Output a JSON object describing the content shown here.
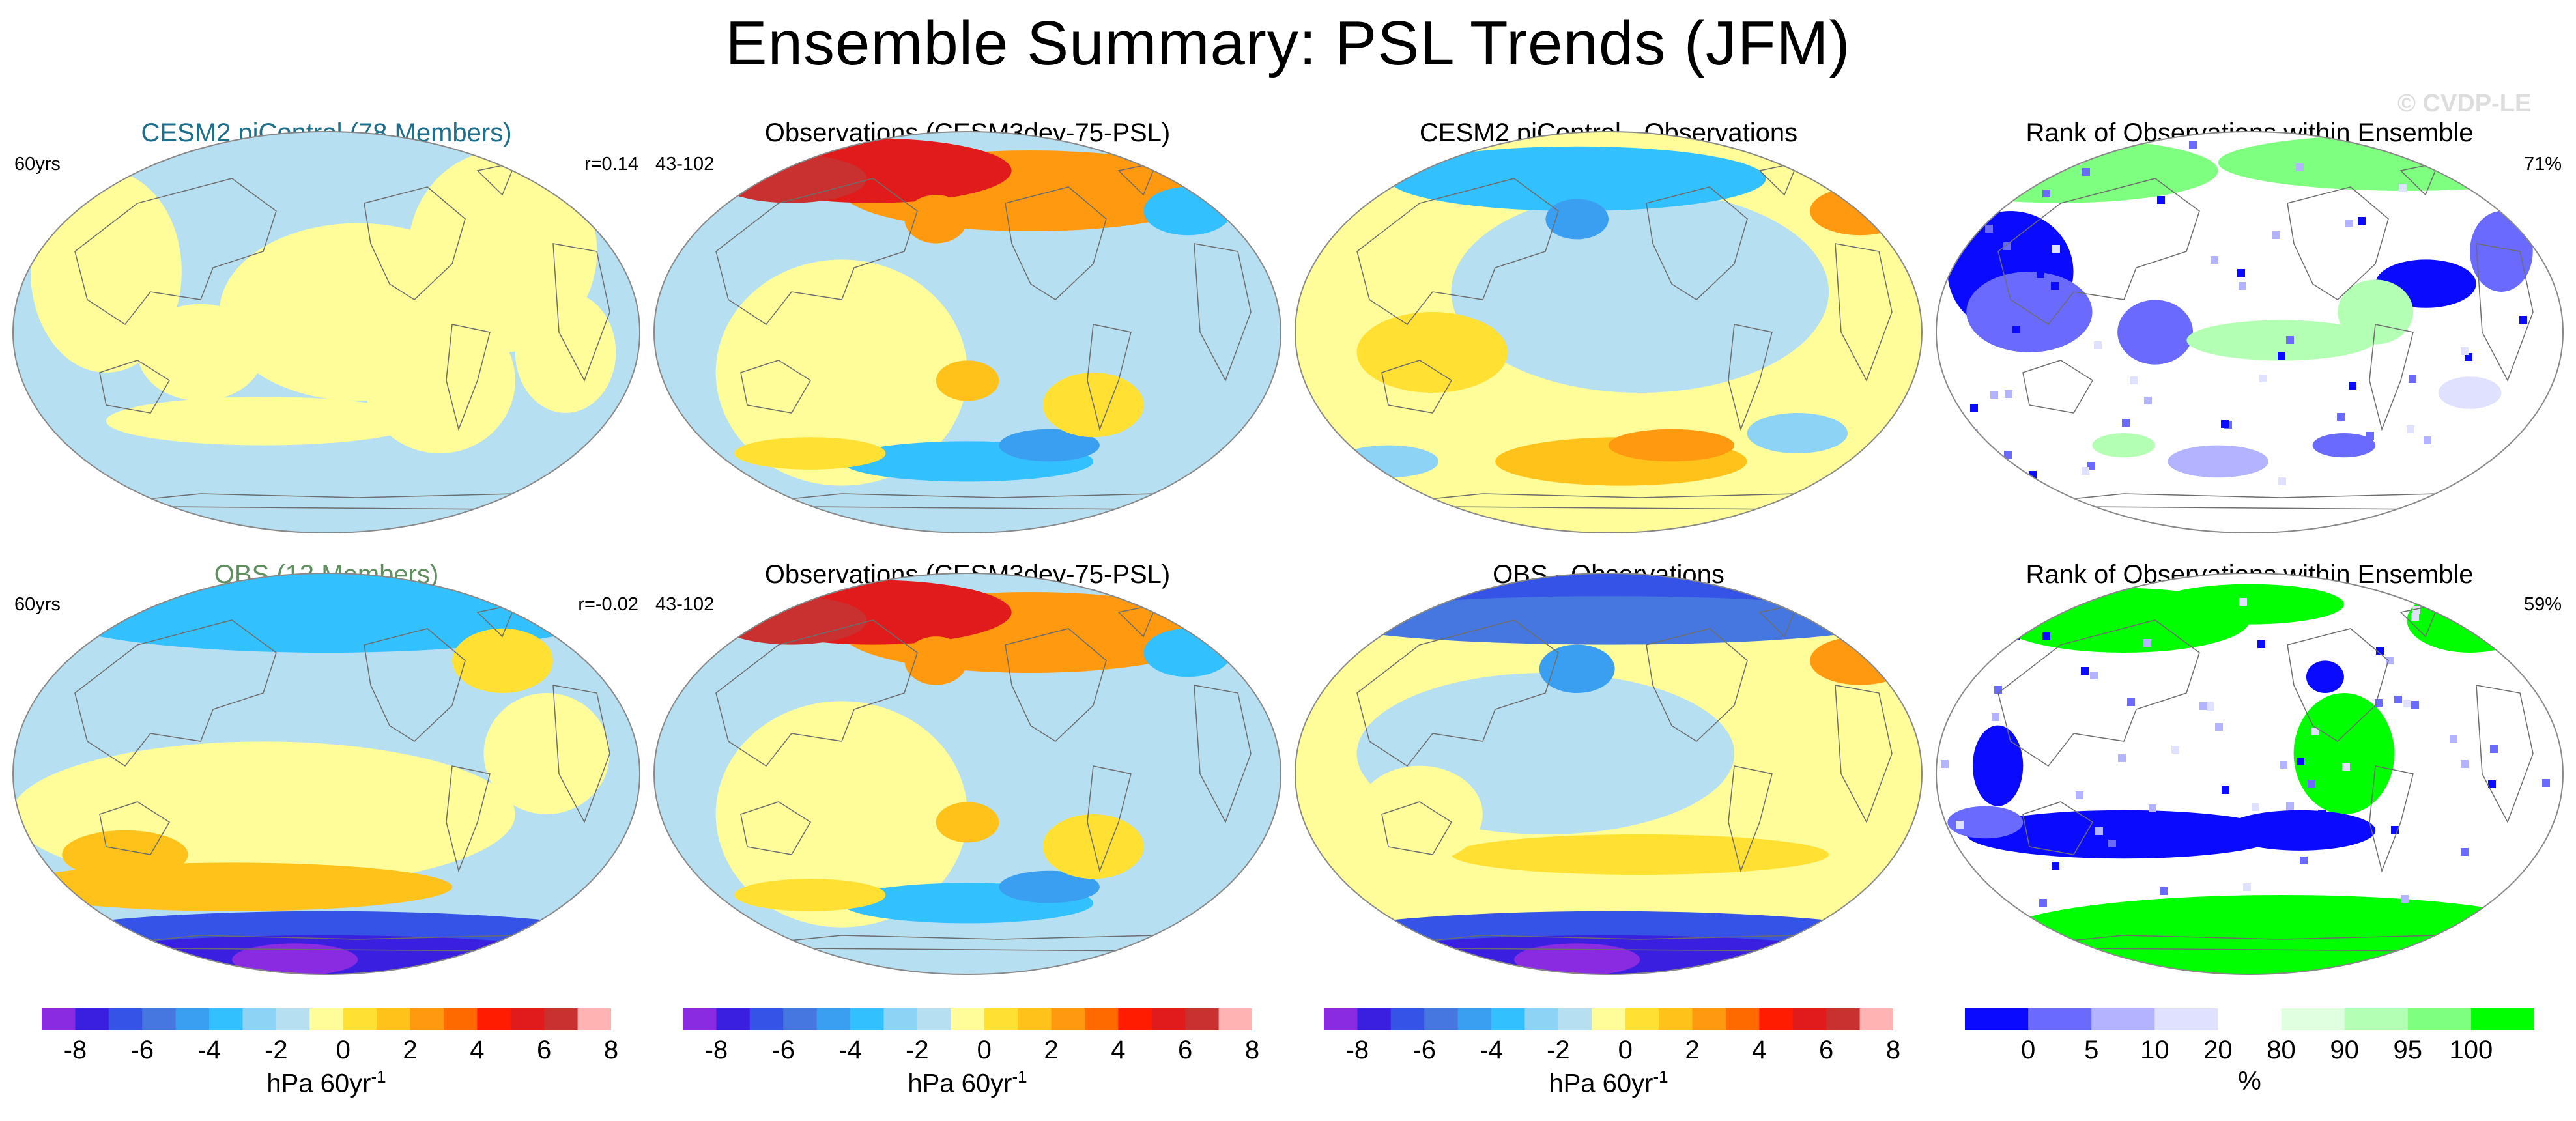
{
  "title": "Ensemble Summary: PSL Trends (JFM)",
  "watermark": "© CVDP-LE",
  "colors": {
    "title_cesm": "#1e6f8c",
    "title_obs_ens": "#5f8f5f",
    "map_outline": "#888888",
    "coast": "#6d6d6d"
  },
  "rows": [
    {
      "panels": [
        {
          "title": "CESM2 piControl (78 Members)",
          "title_color": "#1e6f8c",
          "left": "60yrs",
          "right": "r=0.14",
          "kind": "trend",
          "pattern": "cesm"
        },
        {
          "title": "Observations (CESM3dev-75-PSL)",
          "title_color": "#000000",
          "left": "43-102",
          "right": "",
          "kind": "trend",
          "pattern": "obs"
        },
        {
          "title": "CESM2 piControl - Observations",
          "title_color": "#000000",
          "left": "",
          "right": "",
          "kind": "trend",
          "pattern": "diff1"
        },
        {
          "title": "Rank of Observations within Ensemble",
          "title_color": "#000000",
          "left": "",
          "right": "71%",
          "kind": "rank",
          "pattern": "rank1"
        }
      ]
    },
    {
      "panels": [
        {
          "title": "OBS (13 Members)",
          "title_color": "#5f8f5f",
          "left": "60yrs",
          "right": "r=-0.02",
          "kind": "trend",
          "pattern": "obsens"
        },
        {
          "title": "Observations (CESM3dev-75-PSL)",
          "title_color": "#000000",
          "left": "43-102",
          "right": "",
          "kind": "trend",
          "pattern": "obs"
        },
        {
          "title": "OBS - Observations",
          "title_color": "#000000",
          "left": "",
          "right": "",
          "kind": "trend",
          "pattern": "diff2"
        },
        {
          "title": "Rank of Observations within Ensemble",
          "title_color": "#000000",
          "left": "",
          "right": "59%",
          "kind": "rank",
          "pattern": "rank2"
        }
      ]
    }
  ],
  "colorbars": {
    "trend": {
      "colors": [
        "#8a2be2",
        "#3a1fe0",
        "#3553e6",
        "#4677e0",
        "#3a9ff0",
        "#33c0ff",
        "#8dd3f5",
        "#b7dff2",
        "#fffd9a",
        "#ffe033",
        "#ffc21a",
        "#ff9a10",
        "#ff6a00",
        "#ff1c00",
        "#e11b1b",
        "#c93030",
        "#ffb3b3"
      ],
      "tick_labels": [
        "-8",
        "-6",
        "-4",
        "-2",
        "0",
        "2",
        "4",
        "6",
        "8"
      ],
      "unit": "hPa 60yr",
      "unit_sup": "-1"
    },
    "rank": {
      "colors": [
        "#0a0aff",
        "#6a6aff",
        "#b3b3ff",
        "#e0e0ff",
        "#ffffff",
        "#e0ffe0",
        "#b3ffb3",
        "#7fff7f",
        "#00ff00"
      ],
      "tick_labels": [
        "0",
        "5",
        "10",
        "20",
        "80",
        "90",
        "95",
        "100"
      ],
      "unit": "%"
    }
  },
  "chart_data": [
    {
      "type": "heatmap",
      "title": "CESM2 piControl (78 Members)",
      "variable": "PSL trend",
      "units": "hPa 60yr-1",
      "levels": [
        -8,
        -7,
        -6,
        -5,
        -4,
        -3,
        -2,
        -1,
        0,
        1,
        2,
        3,
        4,
        5,
        6,
        7,
        8
      ],
      "annotations": {
        "left": "60yrs",
        "right": "r=0.14"
      },
      "summary": "weak trends everywhere, between -1 and +1 hPa"
    },
    {
      "type": "heatmap",
      "title": "Observations (CESM3dev-75-PSL)",
      "variable": "PSL trend",
      "units": "hPa 60yr-1",
      "annotations": {
        "left": "43-102"
      },
      "summary": "strong positive over North Pacific/Arctic (+6 to +8), negatives over Southern Ocean (-2 to -3)"
    },
    {
      "type": "heatmap",
      "title": "CESM2 piControl - Observations",
      "variable": "PSL trend difference",
      "units": "hPa 60yr-1",
      "summary": "negative over North Pacific/Arctic (-3 to -5), positive bands in Southern Ocean (+2 to +3)"
    },
    {
      "type": "heatmap",
      "title": "Rank of Observations within Ensemble",
      "variable": "rank",
      "units": "%",
      "annotations": {
        "right": "71%"
      },
      "levels": [
        0,
        5,
        10,
        20,
        80,
        90,
        95,
        100
      ]
    },
    {
      "type": "heatmap",
      "title": "OBS (13 Members)",
      "variable": "PSL trend",
      "units": "hPa 60yr-1",
      "annotations": {
        "left": "60yrs",
        "right": "r=-0.02"
      },
      "summary": "strong negative around Antarctica (-6 to -8), negatives across northern high latitudes (-2 to -4)"
    },
    {
      "type": "heatmap",
      "title": "Observations (CESM3dev-75-PSL)",
      "variable": "PSL trend",
      "units": "hPa 60yr-1",
      "annotations": {
        "left": "43-102"
      }
    },
    {
      "type": "heatmap",
      "title": "OBS - Observations",
      "variable": "PSL trend difference",
      "units": "hPa 60yr-1",
      "summary": "strong negative around Antarctica and Arctic/North Pacific (-5 to -8)"
    },
    {
      "type": "heatmap",
      "title": "Rank of Observations within Ensemble",
      "variable": "rank",
      "units": "%",
      "annotations": {
        "right": "59%"
      },
      "levels": [
        0,
        5,
        10,
        20,
        80,
        90,
        95,
        100
      ]
    }
  ]
}
